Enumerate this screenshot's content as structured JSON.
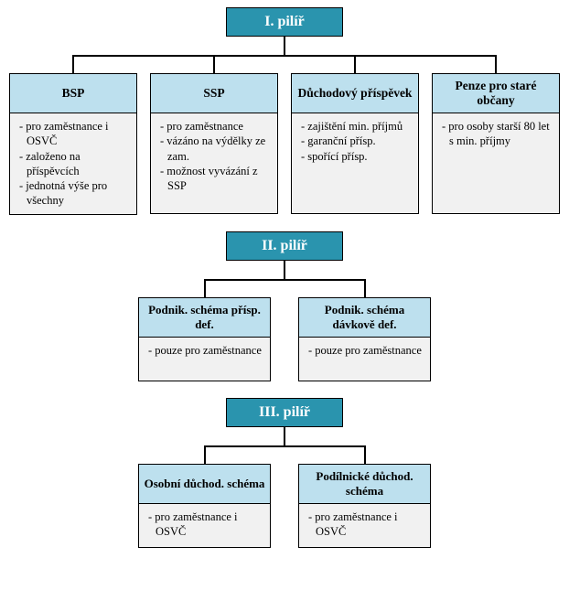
{
  "colors": {
    "root_bg": "#2a94ae",
    "root_fg": "#ffffff",
    "title_bg": "#bde0ee",
    "body_bg": "#f1f1f1"
  },
  "sections": [
    {
      "root": "I. pilíř",
      "child_width": 140,
      "gap": 14,
      "body_height": 110,
      "font_size": 13.5,
      "children": [
        {
          "title": "BSP",
          "lines": [
            "- pro zaměstnance i OSVČ",
            "- založeno na příspěvcích",
            "- jednotná výše pro všechny"
          ]
        },
        {
          "title": "SSP",
          "lines": [
            "- pro zaměstnance",
            "- vázáno na výdělky ze zam.",
            "- možnost vyvázání z SSP"
          ]
        },
        {
          "title": "Důchodový příspěvek",
          "lines": [
            "- zajištění min. příjmů",
            "- garanční přísp.",
            "- spořící přísp."
          ]
        },
        {
          "title": "Penze pro staré občany",
          "lines": [
            "- pro osoby starší 80 let s min. příjmy"
          ]
        }
      ]
    },
    {
      "root": "II. pilíř",
      "child_width": 145,
      "gap": 30,
      "body_height": 48,
      "font_size": 13,
      "children": [
        {
          "title": "Podnik. schéma přísp. def.",
          "lines": [
            "- pouze pro zaměstnance"
          ]
        },
        {
          "title": "Podnik. schéma dávkově def.",
          "lines": [
            "- pouze pro zaměstnance"
          ]
        }
      ]
    },
    {
      "root": "III. pilíř",
      "child_width": 145,
      "gap": 30,
      "body_height": 48,
      "font_size": 13,
      "children": [
        {
          "title": "Osobní důchod. schéma",
          "lines": [
            "- pro zaměstnance i OSVČ"
          ]
        },
        {
          "title": "Podílnické důchod. schéma",
          "lines": [
            "- pro zaměstnance i OSVČ"
          ]
        }
      ]
    }
  ]
}
